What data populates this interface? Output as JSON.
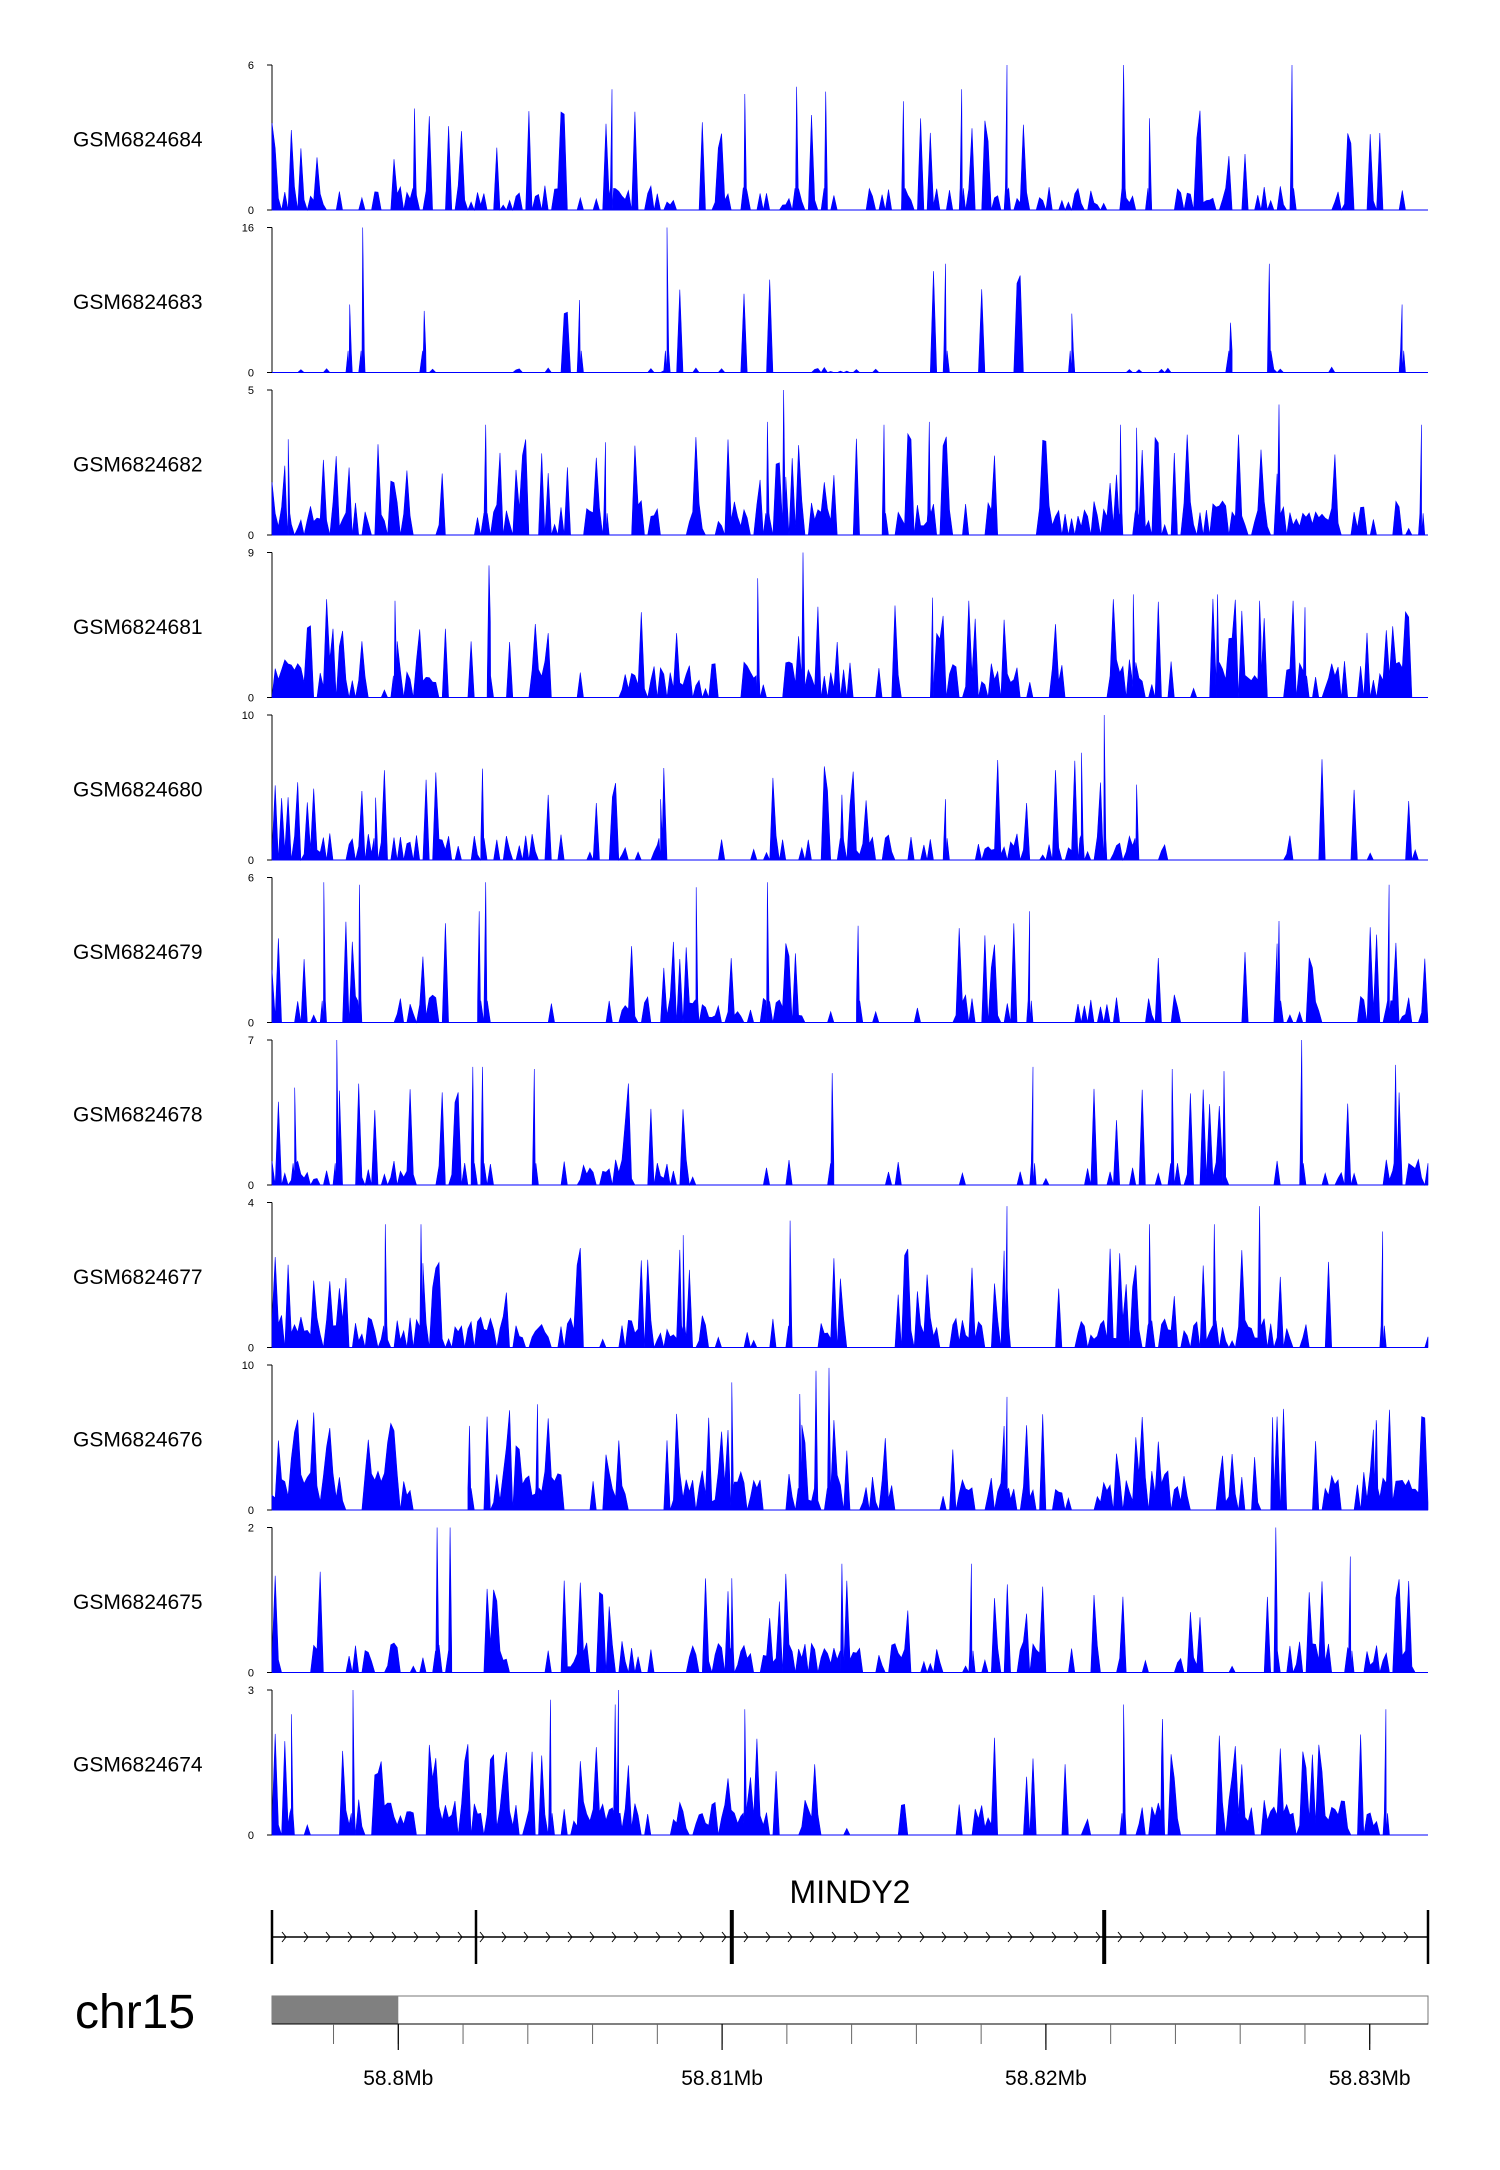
{
  "colors": {
    "signal": "#0000ff",
    "axis": "#000000",
    "ideogram_band": "#808080",
    "ideogram_bg": "#ffffff"
  },
  "chart_data": {
    "type": "area",
    "chromosome": "chr15",
    "region": [
      58.7961,
      58.8318
    ],
    "gene": {
      "name": "MINDY2",
      "strand": "+",
      "start": 58.7961,
      "end": 58.8318,
      "exon_marks": [
        58.7961,
        58.8024,
        58.8103,
        58.8218,
        58.8318
      ]
    },
    "ideogram": {
      "highlight": [
        58.7961,
        58.8
      ]
    },
    "axis": {
      "ticks": [
        58.8,
        58.81,
        58.82,
        58.83
      ],
      "tick_labels": [
        "58.8Mb",
        "58.81Mb",
        "58.82Mb",
        "58.83Mb"
      ],
      "minor_step": 0.002
    },
    "tracks": [
      {
        "name": "GSM6824684",
        "ymax": 6,
        "ymin": 0,
        "ymax_label": "6",
        "ymin_label": "0",
        "seed": 11,
        "density": 0.55,
        "peaks": [
          [
            58.8005,
            4.2
          ],
          [
            58.8066,
            5.0
          ],
          [
            58.8107,
            4.8
          ],
          [
            58.8123,
            5.1
          ],
          [
            58.8132,
            4.9
          ],
          [
            58.8156,
            4.5
          ],
          [
            58.8174,
            5.0
          ],
          [
            58.8188,
            6.0
          ],
          [
            58.8224,
            6.0
          ],
          [
            58.8232,
            3.8
          ],
          [
            58.8276,
            6.0
          ]
        ]
      },
      {
        "name": "GSM6824683",
        "ymax": 16,
        "ymin": 0,
        "ymax_label": "16",
        "ymin_label": "0",
        "seed": 23,
        "density": 0.12,
        "peaks": [
          [
            58.7985,
            7.5
          ],
          [
            58.7989,
            16.0
          ],
          [
            58.8008,
            6.8
          ],
          [
            58.8056,
            8.0
          ],
          [
            58.8083,
            16.0
          ],
          [
            58.8169,
            12.0
          ],
          [
            58.8208,
            6.5
          ],
          [
            58.8257,
            5.5
          ],
          [
            58.8269,
            12.0
          ],
          [
            58.831,
            7.5
          ]
        ]
      },
      {
        "name": "GSM6824682",
        "ymax": 5,
        "ymin": 0,
        "ymax_label": "5",
        "ymin_label": "0",
        "seed": 37,
        "density": 0.78,
        "peaks": [
          [
            58.7966,
            3.3
          ],
          [
            58.8027,
            3.8
          ],
          [
            58.8064,
            3.2
          ],
          [
            58.8114,
            3.9
          ],
          [
            58.8119,
            5.0
          ],
          [
            58.815,
            3.8
          ],
          [
            58.8164,
            3.9
          ],
          [
            58.8223,
            3.8
          ],
          [
            58.8228,
            3.7
          ],
          [
            58.8272,
            4.5
          ],
          [
            58.8316,
            3.8
          ]
        ]
      },
      {
        "name": "GSM6824681",
        "ymax": 9,
        "ymin": 0,
        "ymax_label": "9",
        "ymin_label": "0",
        "seed": 41,
        "density": 0.85,
        "peaks": [
          [
            58.7999,
            6.0
          ],
          [
            58.8028,
            8.2
          ],
          [
            58.8111,
            7.4
          ],
          [
            58.8125,
            9.0
          ],
          [
            58.8165,
            6.2
          ],
          [
            58.8227,
            6.4
          ],
          [
            58.8253,
            6.4
          ],
          [
            58.8266,
            6.0
          ],
          [
            58.828,
            5.6
          ]
        ]
      },
      {
        "name": "GSM6824680",
        "ymax": 10,
        "ymin": 0,
        "ymax_label": "10",
        "ymin_label": "0",
        "seed": 53,
        "density": 0.6,
        "peaks": [
          [
            58.7993,
            4.3
          ],
          [
            58.8026,
            6.3
          ],
          [
            58.8081,
            4.2
          ],
          [
            58.8137,
            4.5
          ],
          [
            58.8169,
            4.2
          ],
          [
            58.8211,
            7.4
          ],
          [
            58.8218,
            10.0
          ],
          [
            58.8228,
            5.2
          ]
        ]
      },
      {
        "name": "GSM6824679",
        "ymax": 6,
        "ymin": 0,
        "ymax_label": "6",
        "ymin_label": "0",
        "seed": 67,
        "density": 0.62,
        "peaks": [
          [
            58.7977,
            5.8
          ],
          [
            58.7988,
            5.7
          ],
          [
            58.8025,
            4.6
          ],
          [
            58.8027,
            5.8
          ],
          [
            58.8092,
            5.6
          ],
          [
            58.8114,
            5.8
          ],
          [
            58.8142,
            4.0
          ],
          [
            58.8195,
            4.6
          ],
          [
            58.8272,
            4.2
          ],
          [
            58.8306,
            5.7
          ]
        ]
      },
      {
        "name": "GSM6824678",
        "ymax": 7,
        "ymin": 0,
        "ymax_label": "7",
        "ymin_label": "0",
        "seed": 79,
        "density": 0.58,
        "peaks": [
          [
            58.7968,
            4.7
          ],
          [
            58.7981,
            7.0
          ],
          [
            58.8023,
            5.7
          ],
          [
            58.8026,
            5.7
          ],
          [
            58.8042,
            5.6
          ],
          [
            58.8134,
            5.4
          ],
          [
            58.8196,
            5.7
          ],
          [
            58.8239,
            5.6
          ],
          [
            58.8255,
            5.5
          ],
          [
            58.8279,
            7.0
          ],
          [
            58.8308,
            5.8
          ]
        ]
      },
      {
        "name": "GSM6824677",
        "ymax": 4,
        "ymin": 0,
        "ymax_label": "4",
        "ymin_label": "0",
        "seed": 89,
        "density": 0.72,
        "peaks": [
          [
            58.7996,
            3.4
          ],
          [
            58.8007,
            3.4
          ],
          [
            58.8088,
            3.1
          ],
          [
            58.8121,
            3.5
          ],
          [
            58.8188,
            3.9
          ],
          [
            58.8232,
            3.4
          ],
          [
            58.8252,
            3.4
          ],
          [
            58.8266,
            3.9
          ],
          [
            58.8304,
            3.2
          ]
        ]
      },
      {
        "name": "GSM6824676",
        "ymax": 10,
        "ymin": 0,
        "ymax_label": "10",
        "ymin_label": "0",
        "seed": 97,
        "density": 0.88,
        "peaks": [
          [
            58.8022,
            5.8
          ],
          [
            58.8043,
            7.3
          ],
          [
            58.8103,
            8.8
          ],
          [
            58.8124,
            8.0
          ],
          [
            58.8129,
            9.6
          ],
          [
            58.8133,
            9.8
          ],
          [
            58.8188,
            7.8
          ],
          [
            58.827,
            6.4
          ],
          [
            58.8302,
            6.2
          ]
        ]
      },
      {
        "name": "GSM6824675",
        "ymax": 2,
        "ymin": 0,
        "ymax_label": "2",
        "ymin_label": "0",
        "seed": 103,
        "density": 0.7,
        "peaks": [
          [
            58.8012,
            2.0
          ],
          [
            58.8016,
            2.0
          ],
          [
            58.8103,
            1.3
          ],
          [
            58.8137,
            1.5
          ],
          [
            58.8177,
            1.5
          ],
          [
            58.8271,
            2.0
          ],
          [
            58.8294,
            1.6
          ]
        ]
      },
      {
        "name": "GSM6824674",
        "ymax": 3,
        "ymin": 0,
        "ymax_label": "3",
        "ymin_label": "0",
        "seed": 113,
        "density": 0.8,
        "peaks": [
          [
            58.7967,
            2.5
          ],
          [
            58.7986,
            3.0
          ],
          [
            58.8047,
            2.8
          ],
          [
            58.8067,
            2.7
          ],
          [
            58.8068,
            3.0
          ],
          [
            58.8107,
            2.6
          ],
          [
            58.8224,
            2.7
          ],
          [
            58.8236,
            2.4
          ],
          [
            58.8305,
            2.6
          ]
        ]
      }
    ]
  }
}
